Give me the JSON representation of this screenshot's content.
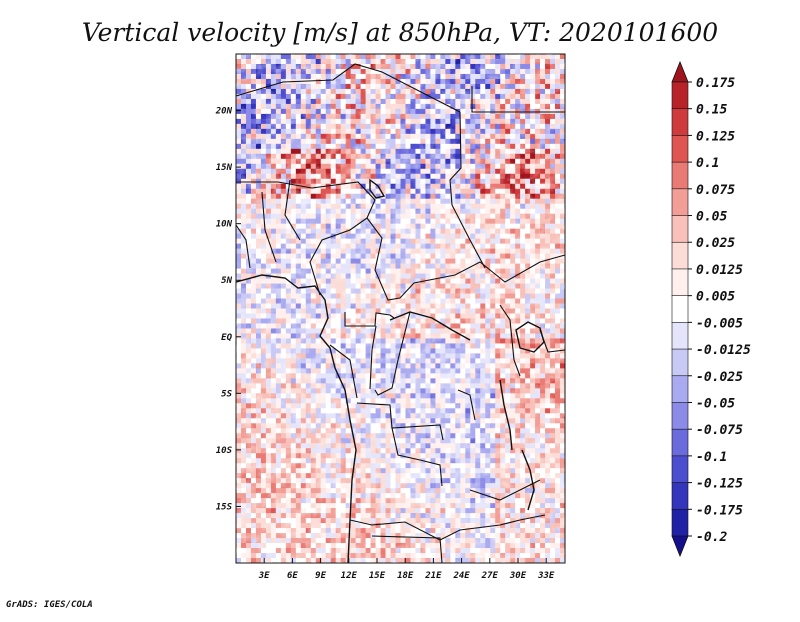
{
  "chart_data": {
    "type": "heatmap",
    "title": "Vertical velocity [m/s] at 850hPa, VT: 2020101600",
    "field": "vertical velocity",
    "units": "m/s",
    "level": "850hPa",
    "valid_time": "2020101600",
    "xlabel": "",
    "ylabel": "",
    "lon_range": [
      0,
      35
    ],
    "lat_range": [
      -20,
      25
    ],
    "lon_ticks": [
      "3E",
      "6E",
      "9E",
      "12E",
      "15E",
      "18E",
      "21E",
      "24E",
      "27E",
      "30E",
      "33E"
    ],
    "lat_ticks": [
      "20N",
      "15N",
      "10N",
      "5N",
      "EQ",
      "5S",
      "10S",
      "15S"
    ],
    "colorbar": {
      "levels": [
        "0.175",
        "0.15",
        "0.125",
        "0.1",
        "0.075",
        "0.05",
        "0.025",
        "0.0125",
        "0.005",
        "-0.005",
        "-0.0125",
        "-0.025",
        "-0.05",
        "-0.075",
        "-0.1",
        "-0.125",
        "-0.175",
        "-0.2"
      ],
      "colors": [
        "#a0141e",
        "#b8232a",
        "#cf3a3c",
        "#de5552",
        "#ea7a74",
        "#f29d95",
        "#f8c0b9",
        "#fcdcd6",
        "#fff0ee",
        "#ffffff",
        "#e4e4fb",
        "#c9c9f6",
        "#aaaaf0",
        "#8c8ce8",
        "#6b6bde",
        "#4d4dd0",
        "#3434bd",
        "#2121a6",
        "#140f8c"
      ]
    }
  },
  "footer": "GrADS: IGES/COLA"
}
